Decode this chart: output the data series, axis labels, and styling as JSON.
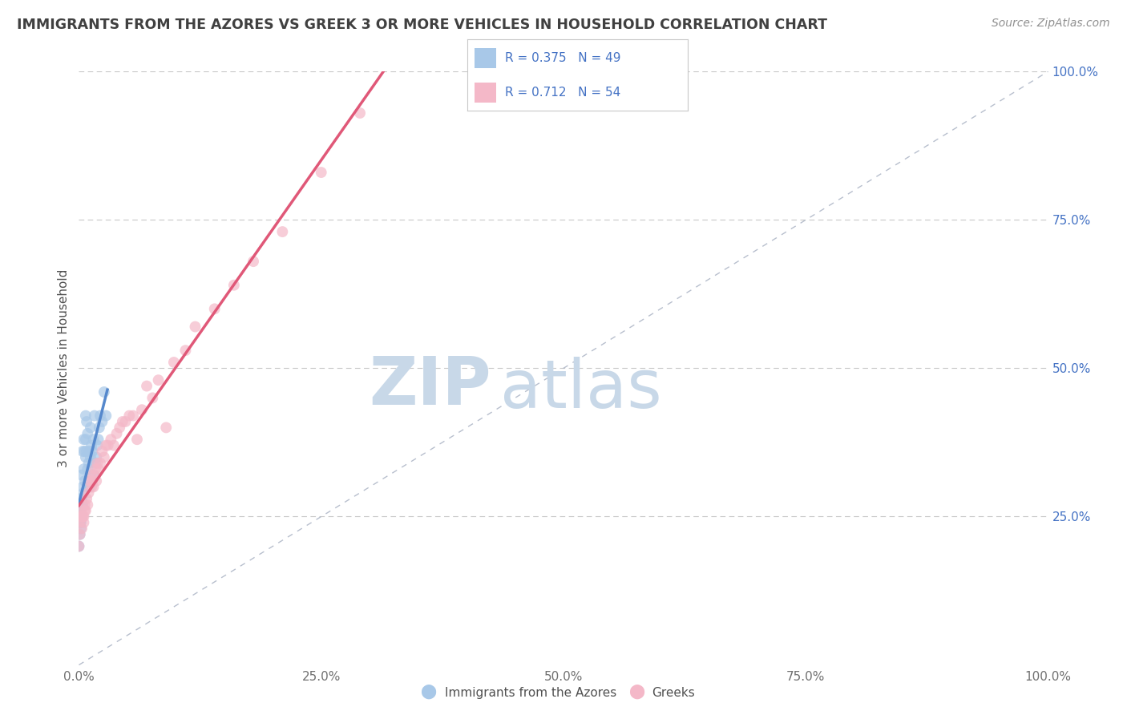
{
  "title": "IMMIGRANTS FROM THE AZORES VS GREEK 3 OR MORE VEHICLES IN HOUSEHOLD CORRELATION CHART",
  "source": "Source: ZipAtlas.com",
  "ylabel": "3 or more Vehicles in Household",
  "legend1_label": "R = 0.375   N = 49",
  "legend2_label": "R = 0.712   N = 54",
  "legend1_color": "#a8c8e8",
  "legend2_color": "#f4b8c8",
  "line1_color": "#5588cc",
  "line2_color": "#e05878",
  "scatter1_color": "#a8c8e8",
  "scatter2_color": "#f4b8c8",
  "diag_color": "#b0b8c8",
  "watermark_zip": "ZIP",
  "watermark_atlas": "atlas",
  "watermark_color": "#c8d8e8",
  "background_color": "#ffffff",
  "title_color": "#404040",
  "source_color": "#909090",
  "legend_text_color": "#4472c4",
  "tick_color": "#4472c4",
  "bottom_label1": "Immigrants from the Azores",
  "bottom_label2": "Greeks",
  "azores_x": [
    0.0,
    0.0,
    0.0,
    0.001,
    0.001,
    0.001,
    0.001,
    0.002,
    0.002,
    0.002,
    0.003,
    0.003,
    0.003,
    0.003,
    0.004,
    0.004,
    0.004,
    0.005,
    0.005,
    0.005,
    0.006,
    0.006,
    0.007,
    0.007,
    0.007,
    0.008,
    0.008,
    0.009,
    0.009,
    0.01,
    0.01,
    0.011,
    0.011,
    0.012,
    0.012,
    0.013,
    0.014,
    0.015,
    0.015,
    0.016,
    0.017,
    0.018,
    0.019,
    0.02,
    0.021,
    0.022,
    0.024,
    0.026,
    0.028
  ],
  "azores_y": [
    0.28,
    0.26,
    0.2,
    0.25,
    0.27,
    0.24,
    0.22,
    0.26,
    0.24,
    0.23,
    0.32,
    0.28,
    0.25,
    0.27,
    0.36,
    0.3,
    0.27,
    0.38,
    0.33,
    0.29,
    0.36,
    0.31,
    0.42,
    0.38,
    0.35,
    0.41,
    0.36,
    0.39,
    0.33,
    0.34,
    0.3,
    0.36,
    0.3,
    0.4,
    0.35,
    0.37,
    0.36,
    0.38,
    0.32,
    0.42,
    0.34,
    0.35,
    0.37,
    0.38,
    0.4,
    0.42,
    0.41,
    0.46,
    0.42
  ],
  "greek_x": [
    0.0,
    0.001,
    0.001,
    0.002,
    0.002,
    0.003,
    0.003,
    0.004,
    0.005,
    0.005,
    0.006,
    0.006,
    0.007,
    0.008,
    0.009,
    0.01,
    0.011,
    0.012,
    0.013,
    0.014,
    0.015,
    0.016,
    0.017,
    0.018,
    0.019,
    0.02,
    0.022,
    0.024,
    0.026,
    0.028,
    0.03,
    0.033,
    0.036,
    0.039,
    0.042,
    0.045,
    0.048,
    0.052,
    0.056,
    0.06,
    0.065,
    0.07,
    0.076,
    0.082,
    0.09,
    0.098,
    0.11,
    0.12,
    0.14,
    0.16,
    0.18,
    0.21,
    0.25,
    0.29
  ],
  "greek_y": [
    0.2,
    0.22,
    0.24,
    0.25,
    0.26,
    0.23,
    0.25,
    0.25,
    0.24,
    0.25,
    0.27,
    0.26,
    0.26,
    0.28,
    0.27,
    0.29,
    0.31,
    0.32,
    0.3,
    0.31,
    0.3,
    0.32,
    0.33,
    0.31,
    0.34,
    0.33,
    0.34,
    0.36,
    0.35,
    0.37,
    0.37,
    0.38,
    0.37,
    0.39,
    0.4,
    0.41,
    0.41,
    0.42,
    0.42,
    0.38,
    0.43,
    0.47,
    0.45,
    0.48,
    0.4,
    0.51,
    0.53,
    0.57,
    0.6,
    0.64,
    0.68,
    0.73,
    0.83,
    0.93
  ],
  "xlim": [
    0,
    1.0
  ],
  "ylim": [
    0,
    1.0
  ],
  "xticks": [
    0,
    0.25,
    0.5,
    0.75,
    1.0
  ],
  "xtick_labels": [
    "0.0%",
    "25.0%",
    "50.0%",
    "75.0%",
    "100.0%"
  ],
  "ytick_vals": [
    0.25,
    0.5,
    0.75,
    1.0
  ],
  "ytick_labels": [
    "25.0%",
    "50.0%",
    "75.0%",
    "100.0%"
  ]
}
